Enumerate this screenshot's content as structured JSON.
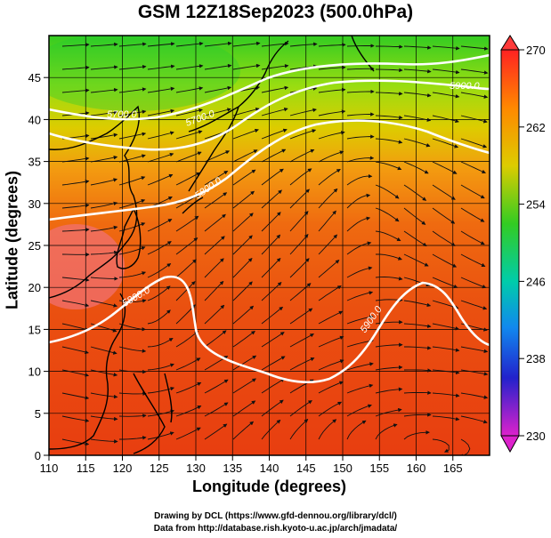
{
  "title": "GSM 12Z18Sep2023 (500.0hPa)",
  "xlabel": "Longitude (degrees)",
  "ylabel": "Latitude  (degrees)",
  "credits": {
    "line1": "Drawing by DCL (https://www.gfd-dennou.org/library/dcl/)",
    "line2": "Data from http://database.rish.kyoto-u.ac.jp/arch/jmadata/"
  },
  "map_data": {
    "lon_range": [
      110,
      170
    ],
    "lat_range": [
      0,
      50
    ],
    "x_ticks": [
      110,
      115,
      120,
      125,
      130,
      135,
      140,
      145,
      150,
      155,
      160,
      165
    ],
    "y_ticks": [
      0,
      5,
      10,
      15,
      20,
      25,
      30,
      35,
      40,
      45
    ],
    "colorbar": {
      "min": 230,
      "max": 270,
      "tick_labels": [
        "270",
        "262",
        "254",
        "246",
        "238",
        "230"
      ]
    },
    "contour_labels": [
      "5700.0",
      "5700.0",
      "5800.0",
      "5800.0",
      "5900.0",
      "5900.0"
    ]
  }
}
